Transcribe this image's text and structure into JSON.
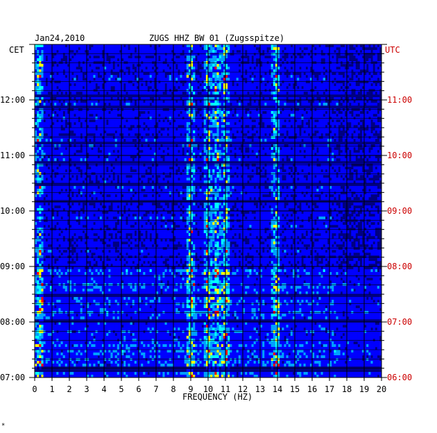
{
  "header": {
    "date": "Jan24,2010",
    "station": "ZUGS HHZ BW 01 (Zugsspitze)",
    "left_tz": "CET",
    "right_tz": "UTC"
  },
  "chart_data": {
    "type": "heatmap",
    "title": "ZUGS HHZ BW 01 (Zugsspitze)",
    "xlabel": "FREQUENCY (HZ)",
    "ylabel": "",
    "xlim": [
      0,
      20
    ],
    "x_ticks": [
      "0",
      "1",
      "2",
      "3",
      "4",
      "5",
      "6",
      "7",
      "8",
      "9",
      "10",
      "11",
      "12",
      "13",
      "14",
      "15",
      "16",
      "17",
      "18",
      "19",
      "20"
    ],
    "y_left_ticks": [
      "07:00",
      "08:00",
      "09:00",
      "10:00",
      "11:00",
      "12:00"
    ],
    "y_right_ticks": [
      "06:00",
      "07:00",
      "08:00",
      "09:00",
      "10:00",
      "11:00"
    ],
    "y_range_cet": [
      "07:00",
      "12:40"
    ],
    "colormap": [
      "#000080",
      "#0000ff",
      "#00a0ff",
      "#00ffff",
      "#ffff00",
      "#ff0000"
    ],
    "dominant_frequencies_hz": [
      0.3,
      9.0,
      10.0,
      10.5,
      11.0,
      13.9
    ]
  },
  "footer": {
    "mark": "*"
  }
}
